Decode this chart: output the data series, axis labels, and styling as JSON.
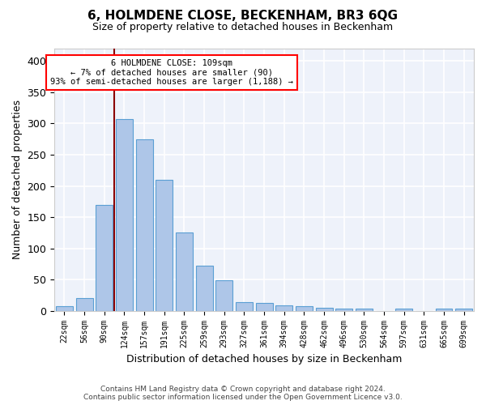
{
  "title": "6, HOLMDENE CLOSE, BECKENHAM, BR3 6QG",
  "subtitle": "Size of property relative to detached houses in Beckenham",
  "xlabel": "Distribution of detached houses by size in Beckenham",
  "ylabel": "Number of detached properties",
  "bar_color": "#aec6e8",
  "bar_edge_color": "#5a9fd4",
  "categories": [
    "22sqm",
    "56sqm",
    "90sqm",
    "124sqm",
    "157sqm",
    "191sqm",
    "225sqm",
    "259sqm",
    "293sqm",
    "327sqm",
    "361sqm",
    "394sqm",
    "428sqm",
    "462sqm",
    "496sqm",
    "530sqm",
    "564sqm",
    "597sqm",
    "631sqm",
    "665sqm",
    "699sqm"
  ],
  "values": [
    7,
    20,
    170,
    307,
    275,
    210,
    125,
    72,
    49,
    14,
    13,
    9,
    8,
    5,
    3,
    3,
    0,
    4,
    0,
    4,
    4
  ],
  "ylim": [
    0,
    420
  ],
  "yticks": [
    0,
    50,
    100,
    150,
    200,
    250,
    300,
    350,
    400
  ],
  "vline_x": 2.5,
  "annotation_text": "6 HOLMDENE CLOSE: 109sqm\n← 7% of detached houses are smaller (90)\n93% of semi-detached houses are larger (1,188) →",
  "annotation_box_color": "white",
  "annotation_box_edge_color": "red",
  "vline_color": "darkred",
  "background_color": "#eef2fa",
  "grid_color": "white",
  "footer_line1": "Contains HM Land Registry data © Crown copyright and database right 2024.",
  "footer_line2": "Contains public sector information licensed under the Open Government Licence v3.0."
}
